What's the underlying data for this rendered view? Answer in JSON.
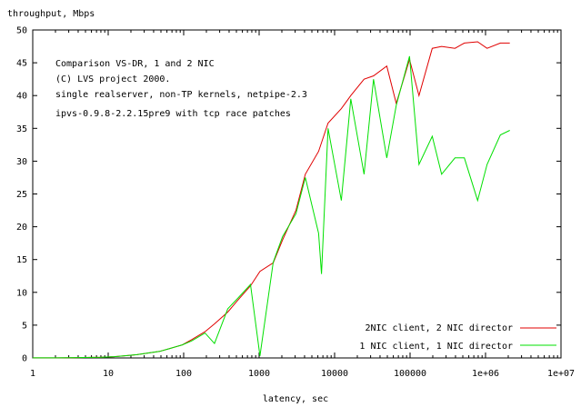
{
  "chart_data": {
    "type": "line",
    "x_scale": "log",
    "xlabel": "latency, sec",
    "ylabel": "throughput, Mbps",
    "xlim": [
      1,
      10000000
    ],
    "ylim": [
      0,
      50
    ],
    "x_ticks": [
      {
        "value": 1,
        "label": "1"
      },
      {
        "value": 10,
        "label": "10"
      },
      {
        "value": 100,
        "label": "100"
      },
      {
        "value": 1000,
        "label": "1000"
      },
      {
        "value": 10000,
        "label": "10000"
      },
      {
        "value": 100000,
        "label": "100000"
      },
      {
        "value": 1000000,
        "label": "1e+06"
      },
      {
        "value": 10000000,
        "label": "1e+07"
      }
    ],
    "y_ticks": [
      0,
      5,
      10,
      15,
      20,
      25,
      30,
      35,
      40,
      45,
      50
    ],
    "grid": false,
    "legend_position": "bottom-right",
    "annotations": [
      "Comparison VS-DR, 1 and 2 NIC",
      "(C) LVS project 2000.",
      "single realserver, non-TP kernels, netpipe-2.3",
      "ipvs-0.9.8-2.2.15pre9 with tcp race patches"
    ],
    "series": [
      {
        "name": "2NIC client, 2 NIC director",
        "color": "#e00000",
        "x": [
          1,
          2,
          3,
          4,
          6,
          8,
          12,
          16,
          24,
          32,
          48,
          64,
          96,
          128,
          192,
          256,
          384,
          512,
          768,
          1024,
          1536,
          2048,
          3072,
          4096,
          6144,
          8192,
          12288,
          16384,
          24576,
          32768,
          49152,
          65536,
          98304,
          131072,
          196608,
          262144,
          393216,
          524288,
          786432,
          1048576,
          1572864,
          2097152
        ],
        "y": [
          0.01,
          0.02,
          0.03,
          0.05,
          0.08,
          0.1,
          0.2,
          0.3,
          0.5,
          0.7,
          1.0,
          1.4,
          2.0,
          2.8,
          4.0,
          5.2,
          7.0,
          8.7,
          11.0,
          13.2,
          14.5,
          18.0,
          22.5,
          28.0,
          31.5,
          35.8,
          38.0,
          40.0,
          42.5,
          43.0,
          44.5,
          38.8,
          45.5,
          40.0,
          47.2,
          47.5,
          47.2,
          48.0,
          48.2,
          47.2,
          48.0,
          48.0
        ]
      },
      {
        "name": "1 NIC client, 1 NIC director",
        "color": "#00e000",
        "x": [
          1,
          2,
          3,
          4,
          6,
          8,
          12,
          16,
          24,
          32,
          48,
          64,
          96,
          128,
          192,
          256,
          384,
          512,
          768,
          1024,
          1536,
          2048,
          3072,
          4096,
          6144,
          6700,
          8192,
          12288,
          16384,
          24576,
          32768,
          49152,
          65536,
          98304,
          131072,
          196608,
          262144,
          393216,
          524288,
          786432,
          1048576,
          1572864,
          2097152
        ],
        "y": [
          0.01,
          0.02,
          0.03,
          0.05,
          0.08,
          0.1,
          0.2,
          0.3,
          0.5,
          0.7,
          1.0,
          1.4,
          2.0,
          2.6,
          3.8,
          2.2,
          7.5,
          9.0,
          11.2,
          0.3,
          14.6,
          18.5,
          22.0,
          27.5,
          19.0,
          12.8,
          35.0,
          24.0,
          39.5,
          28.0,
          42.5,
          30.5,
          38.5,
          46.0,
          29.5,
          33.8,
          28.0,
          30.5,
          30.5,
          24.0,
          29.5,
          34.0,
          34.7
        ]
      }
    ]
  }
}
